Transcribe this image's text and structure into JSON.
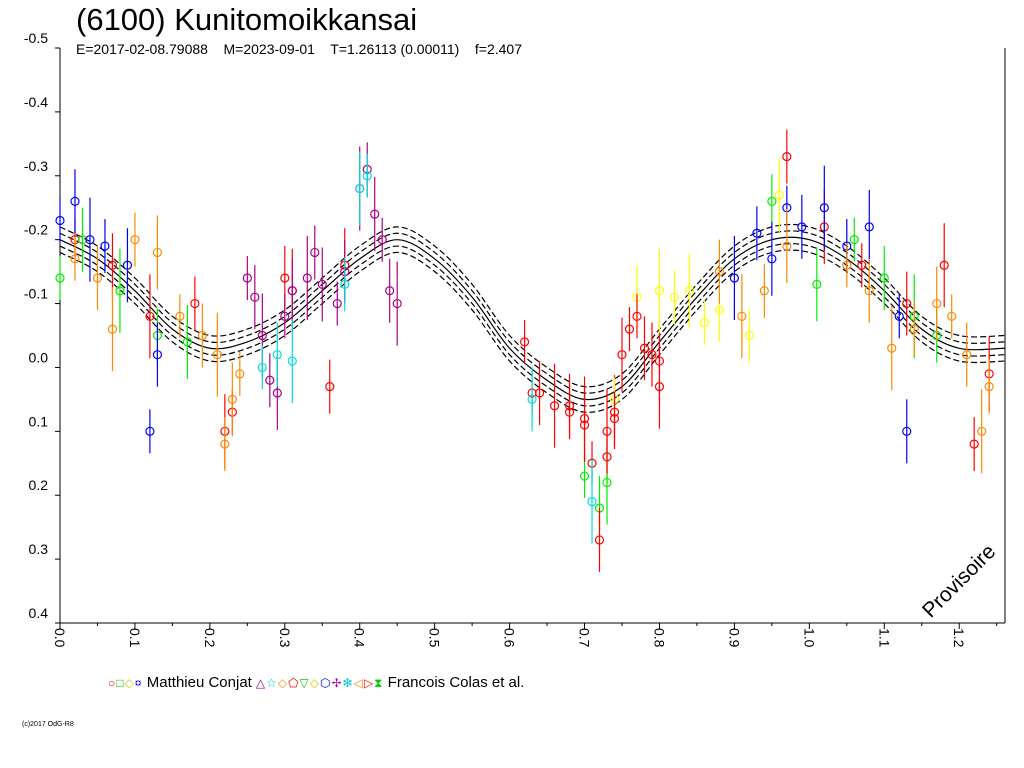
{
  "title": "(6100) Kunitomoikkansai",
  "subtitle": "E=2017-02-08.79088    M=2023-09-01    T=1.26113 (0.00011)    f=2.407",
  "watermark": "Provisoire",
  "copyright": "(c)2017 OdG-R8",
  "legend": {
    "entries": [
      {
        "name": "Matthieu Conjat",
        "symbols": [
          "○",
          "□",
          "◇",
          "¤"
        ],
        "colors": [
          "#ff0000",
          "#00cc00",
          "#ffff00",
          "#0000ff"
        ]
      },
      {
        "name": "Francois Colas et al.",
        "symbols": [
          "△",
          "☆",
          "◇",
          "⬠",
          "▽",
          "◇",
          "⬡",
          "✢",
          "✻",
          "◁",
          "▷",
          "⧗"
        ],
        "colors": [
          "#800080",
          "#00cccc",
          "#ff8800",
          "#ff0000",
          "#00cc00",
          "#ffff00",
          "#0000ff",
          "#aa00aa",
          "#00cccc",
          "#ff8800",
          "#ff0000",
          "#00cc00"
        ]
      }
    ]
  },
  "colors": {
    "red": "#ff0000",
    "green": "#00ee00",
    "yellow": "#ffff00",
    "blue": "#0000ff",
    "orange": "#ff8800",
    "magenta": "#aa0088",
    "cyan": "#00dddd",
    "black": "#000000"
  },
  "chart_data": {
    "type": "scatter",
    "title": "(6100) Kunitomoikkansai",
    "xlim": [
      0.0,
      1.26113
    ],
    "ylim": [
      -0.5,
      0.4
    ],
    "y_inverted": true,
    "x_ticks": [
      "0.0",
      "0.1",
      "0.2",
      "0.3",
      "0.4",
      "0.5",
      "0.6",
      "0.7",
      "0.8",
      "0.9",
      "1.0",
      "1.1",
      "1.2"
    ],
    "y_ticks": [
      "-0.5",
      "-0.4",
      "-0.3",
      "-0.2",
      "-0.1",
      "0.0",
      "0.1",
      "0.2",
      "0.3",
      "0.4"
    ],
    "model": {
      "description": "Fourier fit with 5 offset curves",
      "x": [
        0.0,
        0.05,
        0.1,
        0.15,
        0.2,
        0.25,
        0.3,
        0.35,
        0.4,
        0.45,
        0.5,
        0.55,
        0.6,
        0.65,
        0.7,
        0.75,
        0.8,
        0.85,
        0.9,
        0.95,
        1.0,
        1.05,
        1.1,
        1.15,
        1.2,
        1.26113
      ],
      "y": [
        -0.2,
        -0.17,
        -0.12,
        -0.06,
        -0.03,
        -0.04,
        -0.07,
        -0.12,
        -0.17,
        -0.2,
        -0.17,
        -0.11,
        -0.03,
        0.02,
        0.05,
        0.03,
        -0.04,
        -0.11,
        -0.17,
        -0.2,
        -0.2,
        -0.17,
        -0.12,
        -0.06,
        -0.03,
        -0.03
      ],
      "offsets": [
        -0.02,
        -0.01,
        0.0,
        0.01,
        0.02
      ]
    },
    "series": [
      {
        "name": "Matthieu Conjat",
        "color": "#ff0000",
        "x": [
          0.02,
          0.07,
          0.12,
          0.18,
          0.22,
          0.23,
          0.3,
          0.31,
          0.36,
          0.38,
          0.63,
          0.68,
          0.7,
          0.73,
          0.74,
          0.76,
          0.78,
          0.8,
          0.97,
          1.02,
          1.07,
          1.13,
          1.18,
          1.22,
          1.24
        ],
        "y": [
          -0.2,
          -0.16,
          -0.08,
          -0.1,
          0.1,
          0.07,
          -0.14,
          -0.12,
          0.03,
          -0.16,
          0.04,
          0.06,
          0.08,
          0.14,
          0.07,
          -0.06,
          -0.03,
          -0.01,
          -0.33,
          -0.22,
          -0.16,
          -0.1,
          -0.16,
          0.12,
          0.01
        ]
      },
      {
        "name": "Matthieu Conjat",
        "color": "#00ee00",
        "x": [
          0.0,
          0.03,
          0.08,
          0.13,
          0.17,
          0.7,
          0.72,
          0.73,
          0.95,
          1.01,
          1.06,
          1.1,
          1.14,
          1.17
        ],
        "y": [
          -0.14,
          -0.2,
          -0.12,
          -0.05,
          -0.04,
          0.17,
          0.22,
          0.18,
          -0.26,
          -0.13,
          -0.2,
          -0.14,
          -0.08,
          -0.05
        ]
      },
      {
        "name": "Matthieu Conjat",
        "color": "#ffff00",
        "x": [
          0.74,
          0.77,
          0.8,
          0.82,
          0.84,
          0.86,
          0.88,
          0.9,
          0.92,
          0.96
        ],
        "y": [
          0.05,
          -0.11,
          -0.12,
          -0.11,
          -0.12,
          -0.07,
          -0.09,
          -0.14,
          -0.05,
          -0.27
        ]
      },
      {
        "name": "Matthieu Conjat",
        "color": "#0000ff",
        "x": [
          0.0,
          0.02,
          0.04,
          0.06,
          0.09,
          0.12,
          0.13,
          0.9,
          0.93,
          0.95,
          0.97,
          0.99,
          1.02,
          1.05,
          1.08,
          1.12,
          1.13
        ],
        "y": [
          -0.23,
          -0.26,
          -0.2,
          -0.19,
          -0.16,
          0.1,
          -0.02,
          -0.14,
          -0.21,
          -0.17,
          -0.25,
          -0.22,
          -0.25,
          -0.19,
          -0.22,
          -0.08,
          0.1
        ]
      },
      {
        "name": "Francois Colas et al.",
        "color": "#ff8800",
        "x": [
          0.02,
          0.05,
          0.07,
          0.1,
          0.13,
          0.16,
          0.19,
          0.21,
          0.22,
          0.23,
          0.24,
          0.88,
          0.91,
          0.94,
          0.97,
          1.05,
          1.08,
          1.11,
          1.14,
          1.17,
          1.19,
          1.21,
          1.23,
          1.24
        ],
        "y": [
          -0.17,
          -0.14,
          -0.06,
          -0.2,
          -0.18,
          -0.08,
          -0.05,
          -0.02,
          0.12,
          0.05,
          0.01,
          -0.15,
          -0.08,
          -0.12,
          -0.19,
          -0.16,
          -0.12,
          -0.03,
          -0.06,
          -0.1,
          -0.08,
          -0.02,
          0.1,
          0.03
        ]
      },
      {
        "name": "Francois Colas et al.",
        "color": "#aa0088",
        "x": [
          0.25,
          0.26,
          0.27,
          0.28,
          0.29,
          0.3,
          0.31,
          0.33,
          0.34,
          0.35,
          0.37,
          0.38,
          0.4,
          0.41,
          0.42,
          0.43,
          0.44,
          0.45
        ],
        "y": [
          -0.14,
          -0.11,
          -0.05,
          0.02,
          0.04,
          -0.08,
          -0.12,
          -0.14,
          -0.18,
          -0.13,
          -0.1,
          -0.15,
          -0.28,
          -0.31,
          -0.24,
          -0.2,
          -0.12,
          -0.1
        ]
      },
      {
        "name": "Francois Colas et al.",
        "color": "#ff0000",
        "x": [
          0.62,
          0.64,
          0.66,
          0.68,
          0.7,
          0.71,
          0.72,
          0.73,
          0.74,
          0.75,
          0.77,
          0.79,
          0.8
        ],
        "y": [
          -0.04,
          0.04,
          0.06,
          0.07,
          0.09,
          0.15,
          0.27,
          0.1,
          0.08,
          -0.02,
          -0.08,
          -0.02,
          0.03
        ]
      },
      {
        "name": "Francois Colas et al.",
        "color": "#00dddd",
        "x": [
          0.27,
          0.29,
          0.31,
          0.38,
          0.4,
          0.41,
          0.63,
          0.71
        ],
        "y": [
          0.0,
          -0.02,
          -0.01,
          -0.13,
          -0.28,
          -0.3,
          0.05,
          0.21
        ]
      }
    ]
  }
}
